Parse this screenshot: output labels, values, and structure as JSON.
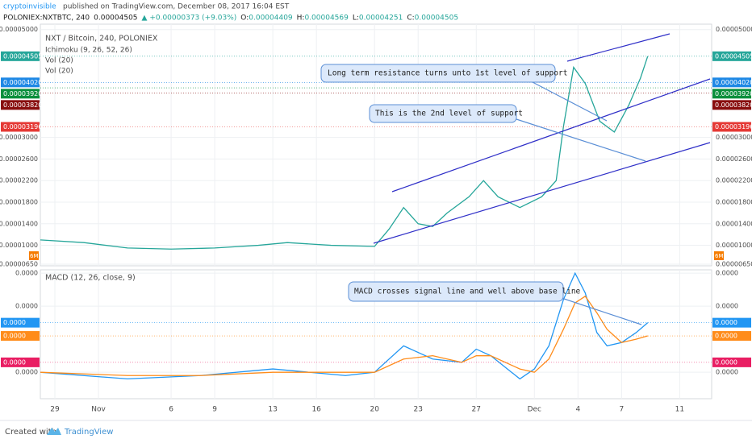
{
  "header": {
    "author": "cryptoinvisible",
    "published": "published on TradingView.com, December 08, 2017 16:04 EST",
    "symbol": "POLONIEX:NXTBTC, 240",
    "last": "0.00004505",
    "change": "▲ +0.00000373 (+9.03%)",
    "ohlc": [
      {
        "label": "O:",
        "value": "0.00004409"
      },
      {
        "label": "H:",
        "value": "0.00004569"
      },
      {
        "label": "L:",
        "value": "0.00004251"
      },
      {
        "label": "C:",
        "value": "0.00004505"
      }
    ]
  },
  "chart_data": [
    {
      "type": "line",
      "title": "NXT / Bitcoin, 240, POLONIEX",
      "indicators": [
        "Ichimoku (9, 26, 52, 26)",
        "Vol (20)",
        "Vol (20)"
      ],
      "x": [
        -1,
        2,
        5,
        8,
        11,
        14,
        16,
        19,
        22,
        23,
        24,
        25,
        26,
        27,
        28.5,
        29.5,
        30.5,
        32,
        33.5,
        34.5,
        35,
        35.7,
        36.5,
        37.5,
        38.5,
        39.5,
        40.3,
        40.8
      ],
      "series": [
        {
          "color": "#26a69a",
          "values": [
            1.1e-05,
            1.05e-05,
            9.5e-06,
            9.3e-06,
            9.5e-06,
            1e-05,
            1.05e-05,
            1e-05,
            9.8e-06,
            1.3e-05,
            1.7e-05,
            1.4e-05,
            1.35e-05,
            1.6e-05,
            1.9e-05,
            2.2e-05,
            1.9e-05,
            1.7e-05,
            1.9e-05,
            2.2e-05,
            3.2e-05,
            4.3e-05,
            4e-05,
            3.3e-05,
            3.1e-05,
            3.6e-05,
            4.1e-05,
            4.505e-05
          ]
        }
      ],
      "xlim": [
        -1,
        45.2
      ],
      "ylim": [
        6.2e-06,
        5.1e-05
      ],
      "yticks": [
        {
          "value": 5e-05,
          "label": "0.00005000"
        },
        {
          "value": 3e-05,
          "label": "0.00003000"
        },
        {
          "value": 2.6e-05,
          "label": "0.00002600"
        },
        {
          "value": 2.2e-05,
          "label": "0.00002200"
        },
        {
          "value": 1.8e-05,
          "label": "0.00001800"
        },
        {
          "value": 1.4e-05,
          "label": "0.00001400"
        },
        {
          "value": 1e-05,
          "label": "0.00001000"
        },
        {
          "value": 6.5e-06,
          "label": "0.00000650"
        }
      ],
      "price_labels": [
        {
          "value": 4.505e-05,
          "label": "0.00004505",
          "color": "#26a69a"
        },
        {
          "value": 4.02e-05,
          "label": "0.00004020",
          "color": "#1e88e5"
        },
        {
          "value": 3.92e-05,
          "label": "0.00003920",
          "color": "#0a8f3c"
        },
        {
          "value": 3.82e-05,
          "label": "0.00003820",
          "color": "#880e0e"
        },
        {
          "value": 3.196e-05,
          "label": "0.00003196",
          "color": "#e53935"
        }
      ],
      "volume_label": "6M",
      "annotations": [
        "Long term resistance turns unto 1st level of support",
        "This is the 2nd level of support"
      ],
      "grid": true
    },
    {
      "type": "line",
      "title": "MACD (12, 26, close, 9)",
      "x": [
        -1,
        5,
        10,
        15,
        20,
        22,
        24,
        26,
        28,
        29,
        30,
        32,
        33,
        34,
        35,
        35.8,
        36.5,
        37.3,
        38,
        39,
        40,
        40.8
      ],
      "series": [
        {
          "color": "#2196f3",
          "values": [
            0,
            -2e-07,
            -1e-07,
            1e-07,
            -1e-07,
            0,
            8e-07,
            4e-07,
            3e-07,
            7e-07,
            5e-07,
            -2e-07,
            1e-07,
            8e-07,
            2.2e-06,
            3e-06,
            2.4e-06,
            1.2e-06,
            8e-07,
            9e-07,
            1.2e-06,
            1.5e-06
          ]
        },
        {
          "color": "#ff8c1a",
          "values": [
            0,
            -1e-07,
            -1e-07,
            0,
            0,
            0,
            4e-07,
            5e-07,
            3e-07,
            5e-07,
            5e-07,
            1e-07,
            0,
            4e-07,
            1.3e-06,
            2.1e-06,
            2.3e-06,
            1.8e-06,
            1.3e-06,
            9e-07,
            1e-06,
            1.1e-06
          ]
        }
      ],
      "xlim": [
        -1,
        45.2
      ],
      "ylim": [
        -8e-07,
        3.1e-06
      ],
      "xticks": [
        {
          "value": 0,
          "label": "29"
        },
        {
          "value": 3,
          "label": "Nov"
        },
        {
          "value": 8,
          "label": "6"
        },
        {
          "value": 11,
          "label": "9"
        },
        {
          "value": 15,
          "label": "13"
        },
        {
          "value": 18,
          "label": "16"
        },
        {
          "value": 22,
          "label": "20"
        },
        {
          "value": 25,
          "label": "23"
        },
        {
          "value": 29,
          "label": "27"
        },
        {
          "value": 33,
          "label": "Dec"
        },
        {
          "value": 36,
          "label": "4"
        },
        {
          "value": 39,
          "label": "7"
        },
        {
          "value": 43,
          "label": "11"
        }
      ],
      "yticks": [
        {
          "value": 3e-06,
          "label": "0.0000"
        },
        {
          "value": 2e-06,
          "label": "0.0000"
        },
        {
          "value": 0,
          "label": "0.0000"
        }
      ],
      "price_labels": [
        {
          "value": 1.5e-06,
          "label": "0.0000",
          "color": "#2196f3"
        },
        {
          "value": 1.1e-06,
          "label": "0.0000",
          "color": "#ff8c1a"
        },
        {
          "value": 3e-07,
          "label": "0.0000",
          "color": "#e91e63"
        }
      ],
      "annotations": [
        "MACD crosses signal line and well above base line"
      ],
      "grid": true
    }
  ],
  "footer": {
    "text": "Created with",
    "brand": "TradingView"
  }
}
